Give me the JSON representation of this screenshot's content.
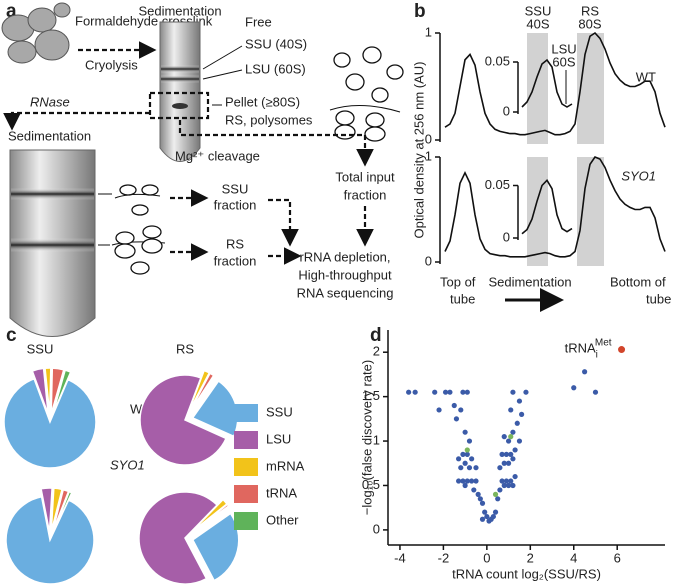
{
  "panel_labels": [
    "a",
    "b",
    "c",
    "d"
  ],
  "diagram": {
    "sedimentation_top": "Sedimentation",
    "crosslink": "Formaldehyde crosslink",
    "cryolysis": "Cryolysis",
    "free": "Free",
    "ssu": "SSU (40S)",
    "lsu": "LSU (60S)",
    "pellet": "Pellet (≥80S)",
    "pellet_contents": "RS, polysomes",
    "rnase": "RNase",
    "sedimentation_left": "Sedimentation",
    "mg": "Mg²⁺ cleavage",
    "ssu_fraction": [
      "SSU",
      "fraction"
    ],
    "rs_fraction": [
      "RS",
      "fraction"
    ],
    "total_input": [
      "Total input",
      "fraction"
    ],
    "sequencing": [
      "rRNA depletion,",
      "High-throughput",
      "RNA sequencing"
    ]
  },
  "profile_labels": {
    "ssu": [
      "SSU",
      "40S"
    ],
    "rs": [
      "RS",
      "80S"
    ],
    "lsu": [
      "LSU",
      "60S"
    ],
    "start": [
      "Top of",
      "tube"
    ],
    "middle": "Sedimentation",
    "end": [
      "Bottom of",
      "tube"
    ]
  },
  "pie_legend": {
    "categories": [
      "SSU",
      "LSU",
      "mRNA",
      "tRNA",
      "Other"
    ],
    "colors": [
      "#6aaee0",
      "#a65ea8",
      "#f2c31a",
      "#e0675f",
      "#5fb35a"
    ]
  },
  "chart_data": [
    {
      "type": "line",
      "title": "WT",
      "ylabel": "Optical density at 256 nm (AU)",
      "color": "#111111",
      "values": [
        0.12,
        0.15,
        0.25,
        0.5,
        0.75,
        0.8,
        0.7,
        0.45,
        0.25,
        0.15,
        0.1,
        0.08,
        0.07,
        0.06,
        0.06,
        0.05,
        0.05,
        0.06,
        0.07,
        0.08,
        0.09,
        0.07,
        0.05,
        0.05,
        0.06,
        0.08,
        0.15,
        0.45,
        0.8,
        0.97,
        1.0,
        0.95,
        0.85,
        0.72,
        0.62,
        0.56,
        0.52,
        0.5,
        0.5,
        0.52,
        0.55,
        0.55,
        0.45,
        0.25,
        0.12
      ],
      "ylim": [
        0,
        1
      ],
      "yticks": [
        0,
        1
      ]
    },
    {
      "type": "line",
      "color": "#111111",
      "values": [
        0.005,
        0.01,
        0.02,
        0.035,
        0.048,
        0.052,
        0.045,
        0.02,
        0.008,
        0.005,
        0.008
      ],
      "ylim": [
        0,
        0.06
      ],
      "yticks": [
        0,
        0.05
      ]
    },
    {
      "type": "line",
      "title": "SYO1",
      "color": "#111111",
      "values": [
        0.1,
        0.2,
        0.45,
        0.75,
        0.85,
        0.75,
        0.45,
        0.22,
        0.12,
        0.08,
        0.07,
        0.06,
        0.06,
        0.05,
        0.05,
        0.05,
        0.05,
        0.06,
        0.07,
        0.08,
        0.09,
        0.08,
        0.06,
        0.05,
        0.05,
        0.06,
        0.1,
        0.3,
        0.7,
        0.93,
        1.0,
        0.98,
        0.9,
        0.78,
        0.68,
        0.6,
        0.55,
        0.52,
        0.5,
        0.5,
        0.52,
        0.52,
        0.42,
        0.22,
        0.1
      ],
      "ylim": [
        0,
        1
      ],
      "yticks": [
        0,
        1
      ]
    },
    {
      "type": "line",
      "color": "#111111",
      "values": [
        0.004,
        0.008,
        0.018,
        0.035,
        0.05,
        0.055,
        0.047,
        0.022,
        0.009,
        0.006,
        0.009
      ],
      "ylim": [
        0,
        0.06
      ],
      "yticks": [
        0,
        0.05
      ]
    },
    {
      "type": "pie",
      "title": "SSU",
      "label": "WT",
      "values": [
        88,
        4,
        2,
        4,
        2
      ]
    },
    {
      "type": "pie",
      "title": "RS",
      "values": [
        22,
        74,
        2,
        1.5,
        0.5
      ]
    },
    {
      "type": "pie",
      "label": "SYO1",
      "values": [
        90,
        4,
        3,
        2,
        1
      ]
    },
    {
      "type": "pie",
      "values": [
        27,
        70,
        2,
        0.7,
        0.3
      ]
    },
    {
      "type": "scatter",
      "xlabel": "tRNA count log₂(SSU/RS)",
      "ylabel": "−log₁₀(false discovery rate)",
      "xlim": [
        -4.55,
        8.2
      ],
      "ylim": [
        -0.17,
        2.25
      ],
      "xticks": [
        -4,
        -2,
        0,
        2,
        4,
        6
      ],
      "yticks": [
        0,
        0.5,
        1,
        1.5,
        2
      ],
      "series": [
        {
          "color": "#3b5ba8",
          "x": [
            -1.9,
            -1.7,
            -1.1,
            -0.9,
            -1.5,
            -1.2,
            -1.4,
            -1.0,
            -0.8,
            -1.1,
            -0.9,
            -1.3,
            -0.7,
            -1.0,
            -1.2,
            -0.8,
            -0.5,
            -1.3,
            -1.1,
            -0.9,
            -0.7,
            -0.5,
            -1.0,
            -0.6,
            -0.4,
            -0.3,
            -0.2,
            -0.1,
            0,
            0.1,
            0.2,
            0.3,
            -0.2,
            0.4,
            0.5,
            0.6,
            0.8,
            1.0,
            1.2,
            0.7,
            0.9,
            1.1,
            1.3,
            0.6,
            0.8,
            1.0,
            1.2,
            0.7,
            0.9,
            1.1,
            1.3,
            1.0,
            0.8,
            1.2,
            1.5,
            1.4,
            1.6,
            1.1,
            1.5,
            1.2,
            1.8,
            4.0,
            4.5,
            5.0,
            -3.6,
            -3.3,
            -2.4,
            -2.2
          ],
          "values": [
            1.55,
            1.55,
            1.55,
            1.55,
            1.4,
            1.35,
            1.25,
            1.1,
            1.0,
            0.85,
            0.85,
            0.8,
            0.8,
            0.75,
            0.7,
            0.7,
            0.7,
            0.55,
            0.55,
            0.55,
            0.55,
            0.55,
            0.5,
            0.45,
            0.4,
            0.35,
            0.3,
            0.2,
            0.15,
            0.1,
            0.12,
            0.15,
            0.12,
            0.2,
            0.35,
            0.45,
            0.5,
            0.5,
            0.5,
            0.55,
            0.55,
            0.55,
            0.6,
            0.7,
            0.75,
            0.75,
            0.8,
            0.85,
            0.85,
            0.85,
            0.9,
            1.0,
            1.05,
            1.1,
            1.0,
            1.2,
            1.3,
            1.35,
            1.45,
            1.55,
            1.55,
            1.6,
            1.78,
            1.55,
            1.55,
            1.55,
            1.55,
            1.35
          ]
        },
        {
          "color": "#7ab55c",
          "x": [
            -0.9,
            1.1,
            0.4
          ],
          "values": [
            0.9,
            1.05,
            0.4
          ]
        },
        {
          "color": "#d2452b",
          "x": [
            6.2
          ],
          "values": [
            2.03
          ]
        }
      ],
      "annotation": {
        "text": "tRNA",
        "sub": "i",
        "sup": "Met"
      }
    }
  ]
}
